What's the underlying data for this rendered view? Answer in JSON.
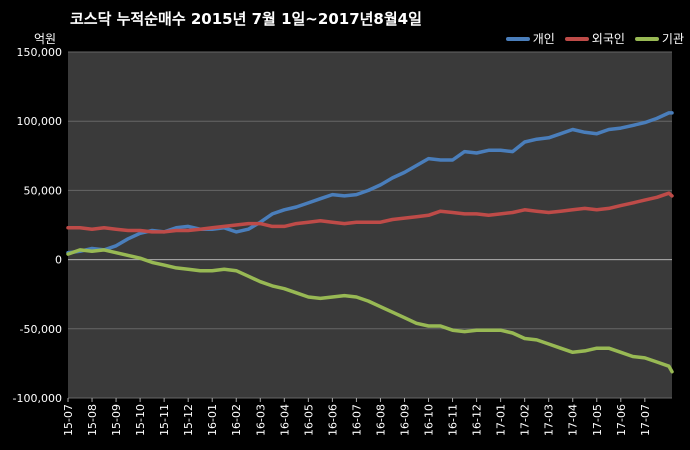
{
  "chart_data": {
    "type": "line",
    "title": "코스닥  누적순매수 2015년 7월 1일~2017년8월4일",
    "y_unit": "억원",
    "ylim": [
      -100000,
      150000
    ],
    "y_ticks": [
      150000,
      100000,
      50000,
      0,
      -50000,
      -100000
    ],
    "y_tick_labels": [
      "150,000",
      "100,000",
      "50,000",
      "0",
      "-50,000",
      "-100,000"
    ],
    "x_tick_labels": [
      "15-07",
      "15-08",
      "15-09",
      "15-10",
      "15-11",
      "15-12",
      "16-01",
      "16-02",
      "16-03",
      "16-04",
      "16-05",
      "16-06",
      "16-07",
      "16-08",
      "16-09",
      "16-10",
      "16-11",
      "16-12",
      "17-01",
      "17-02",
      "17-03",
      "17-04",
      "17-05",
      "17-06",
      "17-07"
    ],
    "x_range": [
      0,
      25.13
    ],
    "grid": true,
    "legend_position": "top-right",
    "series": [
      {
        "name": "개인",
        "color": "#4a7ebb",
        "x": [
          0,
          0.5,
          1,
          1.5,
          2,
          2.5,
          3,
          3.5,
          4,
          4.5,
          5,
          5.5,
          6,
          6.5,
          7,
          7.5,
          8,
          8.5,
          9,
          9.5,
          10,
          10.5,
          11,
          11.5,
          12,
          12.5,
          13,
          13.5,
          14,
          14.5,
          15,
          15.5,
          16,
          16.5,
          17,
          17.5,
          18,
          18.5,
          19,
          19.5,
          20,
          20.5,
          21,
          21.5,
          22,
          22.5,
          23,
          23.5,
          24,
          24.5,
          25,
          25.13
        ],
        "values": [
          5000,
          6000,
          8000,
          7000,
          10000,
          15000,
          19000,
          21000,
          20000,
          23000,
          24000,
          22000,
          22000,
          23000,
          20000,
          22000,
          27000,
          33000,
          36000,
          38000,
          41000,
          44000,
          47000,
          46000,
          47000,
          50000,
          54000,
          59000,
          63000,
          68000,
          73000,
          72000,
          72000,
          78000,
          77000,
          79000,
          79000,
          78000,
          85000,
          87000,
          88000,
          91000,
          94000,
          92000,
          91000,
          94000,
          95000,
          97000,
          99000,
          102000,
          106000,
          106000
        ]
      },
      {
        "name": "외국인",
        "color": "#be4b48",
        "x": [
          0,
          0.5,
          1,
          1.5,
          2,
          2.5,
          3,
          3.5,
          4,
          4.5,
          5,
          5.5,
          6,
          6.5,
          7,
          7.5,
          8,
          8.5,
          9,
          9.5,
          10,
          10.5,
          11,
          11.5,
          12,
          12.5,
          13,
          13.5,
          14,
          14.5,
          15,
          15.5,
          16,
          16.5,
          17,
          17.5,
          18,
          18.5,
          19,
          19.5,
          20,
          20.5,
          21,
          21.5,
          22,
          22.5,
          23,
          23.5,
          24,
          24.5,
          25,
          25.13
        ],
        "values": [
          23000,
          23000,
          22000,
          23000,
          22000,
          21000,
          21000,
          20000,
          20000,
          21000,
          21000,
          22000,
          23000,
          24000,
          25000,
          26000,
          26000,
          24000,
          24000,
          26000,
          27000,
          28000,
          27000,
          26000,
          27000,
          27000,
          27000,
          29000,
          30000,
          31000,
          32000,
          35000,
          34000,
          33000,
          33000,
          32000,
          33000,
          34000,
          36000,
          35000,
          34000,
          35000,
          36000,
          37000,
          36000,
          37000,
          39000,
          41000,
          43000,
          45000,
          48000,
          46000
        ]
      },
      {
        "name": "기관",
        "color": "#98b954",
        "x": [
          0,
          0.5,
          1,
          1.5,
          2,
          2.5,
          3,
          3.5,
          4,
          4.5,
          5,
          5.5,
          6,
          6.5,
          7,
          7.5,
          8,
          8.5,
          9,
          9.5,
          10,
          10.5,
          11,
          11.5,
          12,
          12.5,
          13,
          13.5,
          14,
          14.5,
          15,
          15.5,
          16,
          16.5,
          17,
          17.5,
          18,
          18.5,
          19,
          19.5,
          20,
          20.5,
          21,
          21.5,
          22,
          22.5,
          23,
          23.5,
          24,
          24.5,
          25,
          25.13
        ],
        "values": [
          4000,
          7000,
          6000,
          7000,
          5000,
          3000,
          1000,
          -2000,
          -4000,
          -6000,
          -7000,
          -8000,
          -8000,
          -7000,
          -8000,
          -12000,
          -16000,
          -19000,
          -21000,
          -24000,
          -27000,
          -28000,
          -27000,
          -26000,
          -27000,
          -30000,
          -34000,
          -38000,
          -42000,
          -46000,
          -48000,
          -48000,
          -51000,
          -52000,
          -51000,
          -51000,
          -51000,
          -53000,
          -57000,
          -58000,
          -61000,
          -64000,
          -67000,
          -66000,
          -64000,
          -64000,
          -67000,
          -70000,
          -71000,
          -74000,
          -77000,
          -81000
        ]
      }
    ]
  }
}
